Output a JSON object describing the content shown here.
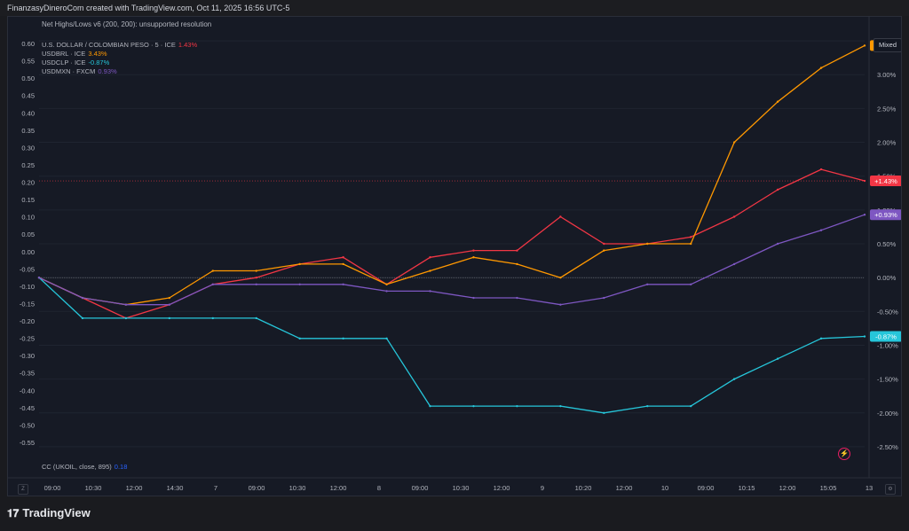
{
  "header": {
    "attribution": "FinanzasyDineroCom created with TradingView.com, Oct 11, 2025 16:56 UTC-5"
  },
  "indicator": {
    "label": "Net Highs/Lows v6 (200, 200): unsupported resolution"
  },
  "legend": [
    {
      "name": "U.S. DOLLAR / COLOMBIAN PESO · 5 · ICE",
      "value": "1.43%",
      "color": "#f23645"
    },
    {
      "name": "USDBRL · ICE",
      "value": "3.43%",
      "color": "#ff9800"
    },
    {
      "name": "USDCLP · ICE",
      "value": "-0.87%",
      "color": "#26c6da"
    },
    {
      "name": "USDMXN · FXCM",
      "value": "0.93%",
      "color": "#7e57c2"
    }
  ],
  "scale_mode_button": "Mixed",
  "bottom_indicator": {
    "label": "CC (UKOIL, close, 895)",
    "value": "0.18"
  },
  "left_axis": [
    "0.60",
    "0.55",
    "0.50",
    "0.45",
    "0.40",
    "0.35",
    "0.30",
    "0.25",
    "0.20",
    "0.15",
    "0.10",
    "0.05",
    "0.00",
    "-0.05",
    "-0.10",
    "-0.15",
    "-0.20",
    "-0.25",
    "-0.30",
    "-0.35",
    "-0.40",
    "-0.45",
    "-0.50",
    "-0.55"
  ],
  "right_axis": [
    "3.50%",
    "3.00%",
    "2.50%",
    "2.00%",
    "1.50%",
    "1.00%",
    "0.50%",
    "0.00%",
    "-0.50%",
    "-1.00%",
    "-1.50%",
    "-2.00%",
    "-2.50%"
  ],
  "time_axis": [
    "09:00",
    "10:30",
    "12:00",
    "14:30",
    "7",
    "09:00",
    "10:30",
    "12:00",
    "8",
    "09:00",
    "10:30",
    "12:00",
    "9",
    "10:20",
    "12:00",
    "10",
    "09:00",
    "10:15",
    "12:00",
    "15:05",
    "13"
  ],
  "badges": [
    {
      "label": "+3.43%",
      "color": "#ff9800"
    },
    {
      "label": "+1.43%",
      "color": "#f23645"
    },
    {
      "label": "+0.93%",
      "color": "#7e57c2"
    },
    {
      "label": "-0.87%",
      "color": "#26c6da"
    }
  ],
  "brand": "TradingView",
  "chart_data": {
    "type": "line",
    "x": [
      "09:00",
      "10:30",
      "12:00",
      "14:30",
      "7",
      "09:00",
      "10:30",
      "12:00",
      "8",
      "09:00",
      "10:30",
      "12:00",
      "9",
      "10:20",
      "12:00",
      "10",
      "09:00",
      "10:15",
      "12:00",
      "15:05"
    ],
    "yunit": "%",
    "ylim": [
      -2.75,
      3.75
    ],
    "series": [
      {
        "name": "U.S. DOLLAR / COLOMBIAN PESO · 5 · ICE",
        "color": "#f23645",
        "values": [
          0.0,
          -0.3,
          -0.6,
          -0.4,
          -0.1,
          0.0,
          0.2,
          0.3,
          -0.1,
          0.3,
          0.4,
          0.4,
          0.9,
          0.5,
          0.5,
          0.6,
          0.9,
          1.3,
          1.6,
          1.43
        ]
      },
      {
        "name": "USDBRL · ICE",
        "color": "#ff9800",
        "values": [
          0.0,
          -0.3,
          -0.4,
          -0.3,
          0.1,
          0.1,
          0.2,
          0.2,
          -0.1,
          0.1,
          0.3,
          0.2,
          0.0,
          0.4,
          0.5,
          0.5,
          2.0,
          2.6,
          3.1,
          3.43
        ]
      },
      {
        "name": "USDCLP · ICE",
        "color": "#26c6da",
        "values": [
          0.0,
          -0.6,
          -0.6,
          -0.6,
          -0.6,
          -0.6,
          -0.9,
          -0.9,
          -0.9,
          -1.9,
          -1.9,
          -1.9,
          -1.9,
          -2.0,
          -1.9,
          -1.9,
          -1.5,
          -1.2,
          -0.9,
          -0.87
        ]
      },
      {
        "name": "USDMXN · FXCM",
        "color": "#7e57c2",
        "values": [
          0.0,
          -0.3,
          -0.4,
          -0.4,
          -0.1,
          -0.1,
          -0.1,
          -0.1,
          -0.2,
          -0.2,
          -0.3,
          -0.3,
          -0.4,
          -0.3,
          -0.1,
          -0.1,
          0.2,
          0.5,
          0.7,
          0.93
        ]
      }
    ]
  }
}
